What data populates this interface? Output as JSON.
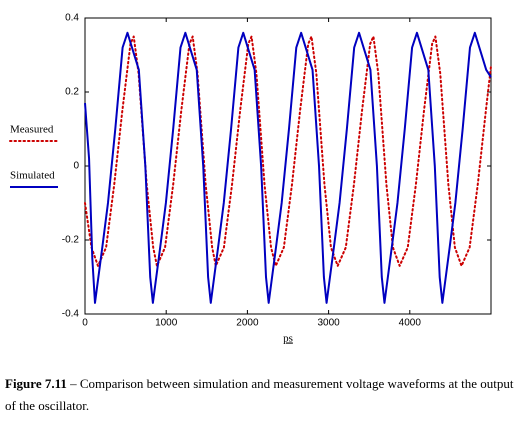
{
  "chart_data": {
    "type": "line",
    "x_label": "ps",
    "xlim": [
      0,
      5000
    ],
    "ylim": [
      -0.4,
      0.4
    ],
    "xticks": [
      0,
      1000,
      2000,
      3000,
      4000
    ],
    "yticks": [
      0.4,
      0.2,
      0,
      -0.2,
      -0.4
    ],
    "grid": false,
    "legend": "left",
    "series": [
      {
        "name": "Measured",
        "color": "#cc0000",
        "style": "dotted",
        "x": [
          0,
          80,
          160,
          260,
          360,
          460,
          560,
          600,
          660,
          760,
          840,
          886,
          986,
          1086,
          1186,
          1286,
          1326,
          1386,
          1486,
          1566,
          1611,
          1711,
          1811,
          1911,
          2011,
          2051,
          2111,
          2211,
          2291,
          2349,
          2449,
          2549,
          2649,
          2749,
          2789,
          2849,
          2949,
          3029,
          3112,
          3212,
          3312,
          3412,
          3512,
          3552,
          3612,
          3712,
          3792,
          3875,
          3975,
          4075,
          4175,
          4275,
          4315,
          4375,
          4475,
          4555,
          4637,
          4737,
          4837,
          4937,
          5000
        ],
        "values": [
          -0.1,
          -0.22,
          -0.27,
          -0.22,
          -0.05,
          0.15,
          0.33,
          0.35,
          0.25,
          -0.05,
          -0.22,
          -0.27,
          -0.22,
          -0.05,
          0.15,
          0.33,
          0.35,
          0.25,
          -0.05,
          -0.22,
          -0.27,
          -0.22,
          -0.05,
          0.15,
          0.33,
          0.35,
          0.25,
          -0.05,
          -0.22,
          -0.27,
          -0.22,
          -0.05,
          0.15,
          0.33,
          0.35,
          0.25,
          -0.05,
          -0.22,
          -0.27,
          -0.22,
          -0.05,
          0.15,
          0.33,
          0.35,
          0.25,
          -0.05,
          -0.22,
          -0.27,
          -0.22,
          -0.05,
          0.15,
          0.33,
          0.35,
          0.25,
          -0.05,
          -0.22,
          -0.27,
          -0.22,
          -0.05,
          0.15,
          0.27
        ]
      },
      {
        "name": "Simulated",
        "color": "#0000c0",
        "style": "solid",
        "x": [
          0,
          50,
          90,
          123,
          213,
          283,
          373,
          463,
          523,
          593,
          663,
          743,
          803,
          836,
          926,
          996,
          1086,
          1176,
          1236,
          1306,
          1376,
          1456,
          1516,
          1549,
          1639,
          1709,
          1799,
          1889,
          1949,
          2019,
          2089,
          2169,
          2229,
          2262,
          2352,
          2422,
          2512,
          2602,
          2662,
          2732,
          2802,
          2882,
          2942,
          2975,
          3065,
          3135,
          3225,
          3315,
          3375,
          3445,
          3515,
          3595,
          3655,
          3688,
          3778,
          3848,
          3938,
          4028,
          4088,
          4158,
          4228,
          4308,
          4368,
          4401,
          4491,
          4561,
          4651,
          4741,
          4801,
          4871,
          4941,
          5000
        ],
        "values": [
          0.17,
          0.02,
          -0.25,
          -0.37,
          -0.22,
          -0.1,
          0.1,
          0.32,
          0.36,
          0.31,
          0.26,
          0.0,
          -0.3,
          -0.37,
          -0.22,
          -0.1,
          0.1,
          0.32,
          0.36,
          0.31,
          0.26,
          0.0,
          -0.3,
          -0.37,
          -0.22,
          -0.1,
          0.1,
          0.32,
          0.36,
          0.31,
          0.26,
          0.0,
          -0.3,
          -0.37,
          -0.22,
          -0.1,
          0.1,
          0.32,
          0.36,
          0.31,
          0.26,
          0.0,
          -0.3,
          -0.37,
          -0.22,
          -0.1,
          0.1,
          0.32,
          0.36,
          0.31,
          0.26,
          0.0,
          -0.3,
          -0.37,
          -0.22,
          -0.1,
          0.1,
          0.32,
          0.36,
          0.31,
          0.26,
          0.0,
          -0.3,
          -0.37,
          -0.22,
          -0.1,
          0.1,
          0.32,
          0.36,
          0.31,
          0.26,
          0.24
        ]
      }
    ]
  },
  "caption": {
    "label": "Figure 7.11",
    "text": " – Comparison between simulation and measurement voltage waveforms at the output of the oscillator."
  }
}
